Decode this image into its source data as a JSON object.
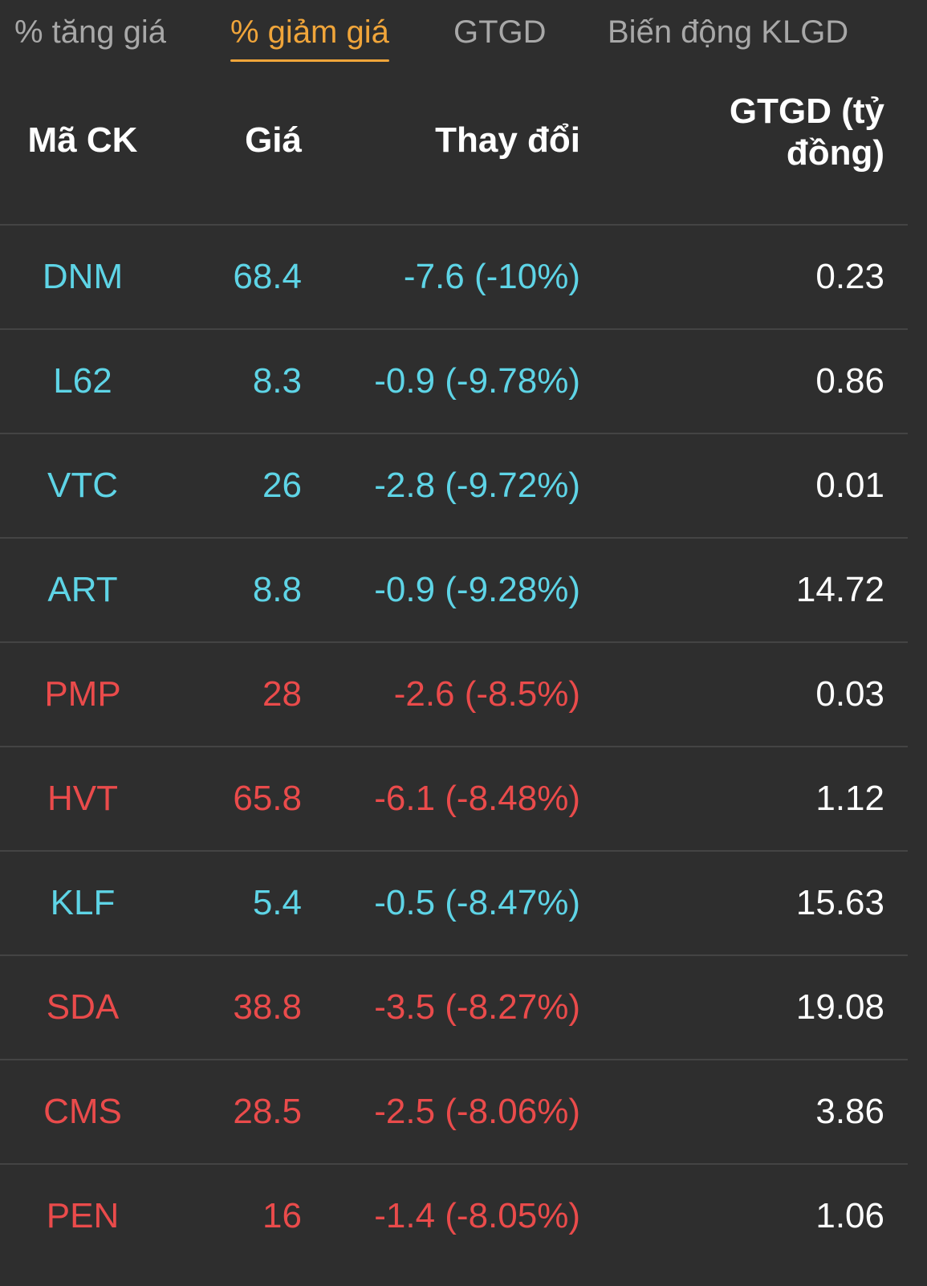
{
  "tabs": [
    {
      "label": "% tăng giá",
      "active": false
    },
    {
      "label": "% giảm giá",
      "active": true
    },
    {
      "label": "GTGD",
      "active": false
    },
    {
      "label": "Biến động KLGD",
      "active": false
    }
  ],
  "header": {
    "code": "Mã CK",
    "price": "Giá",
    "change": "Thay đổi",
    "value_line1": "GTGD (tỷ",
    "value_line2": "đồng)"
  },
  "colors": {
    "accent": "#f0a53a",
    "cyan": "#5ed4e6",
    "red": "#ea4b4b",
    "background": "#2e2e2e"
  },
  "rows": [
    {
      "code": "DNM",
      "price": "68.4",
      "change": "-7.6 (-10%)",
      "value": "0.23",
      "color": "cyan"
    },
    {
      "code": "L62",
      "price": "8.3",
      "change": "-0.9 (-9.78%)",
      "value": "0.86",
      "color": "cyan"
    },
    {
      "code": "VTC",
      "price": "26",
      "change": "-2.8 (-9.72%)",
      "value": "0.01",
      "color": "cyan"
    },
    {
      "code": "ART",
      "price": "8.8",
      "change": "-0.9 (-9.28%)",
      "value": "14.72",
      "color": "cyan"
    },
    {
      "code": "PMP",
      "price": "28",
      "change": "-2.6 (-8.5%)",
      "value": "0.03",
      "color": "red"
    },
    {
      "code": "HVT",
      "price": "65.8",
      "change": "-6.1 (-8.48%)",
      "value": "1.12",
      "color": "red"
    },
    {
      "code": "KLF",
      "price": "5.4",
      "change": "-0.5 (-8.47%)",
      "value": "15.63",
      "color": "cyan"
    },
    {
      "code": "SDA",
      "price": "38.8",
      "change": "-3.5 (-8.27%)",
      "value": "19.08",
      "color": "red"
    },
    {
      "code": "CMS",
      "price": "28.5",
      "change": "-2.5 (-8.06%)",
      "value": "3.86",
      "color": "red"
    },
    {
      "code": "PEN",
      "price": "16",
      "change": "-1.4 (-8.05%)",
      "value": "1.06",
      "color": "red"
    }
  ]
}
